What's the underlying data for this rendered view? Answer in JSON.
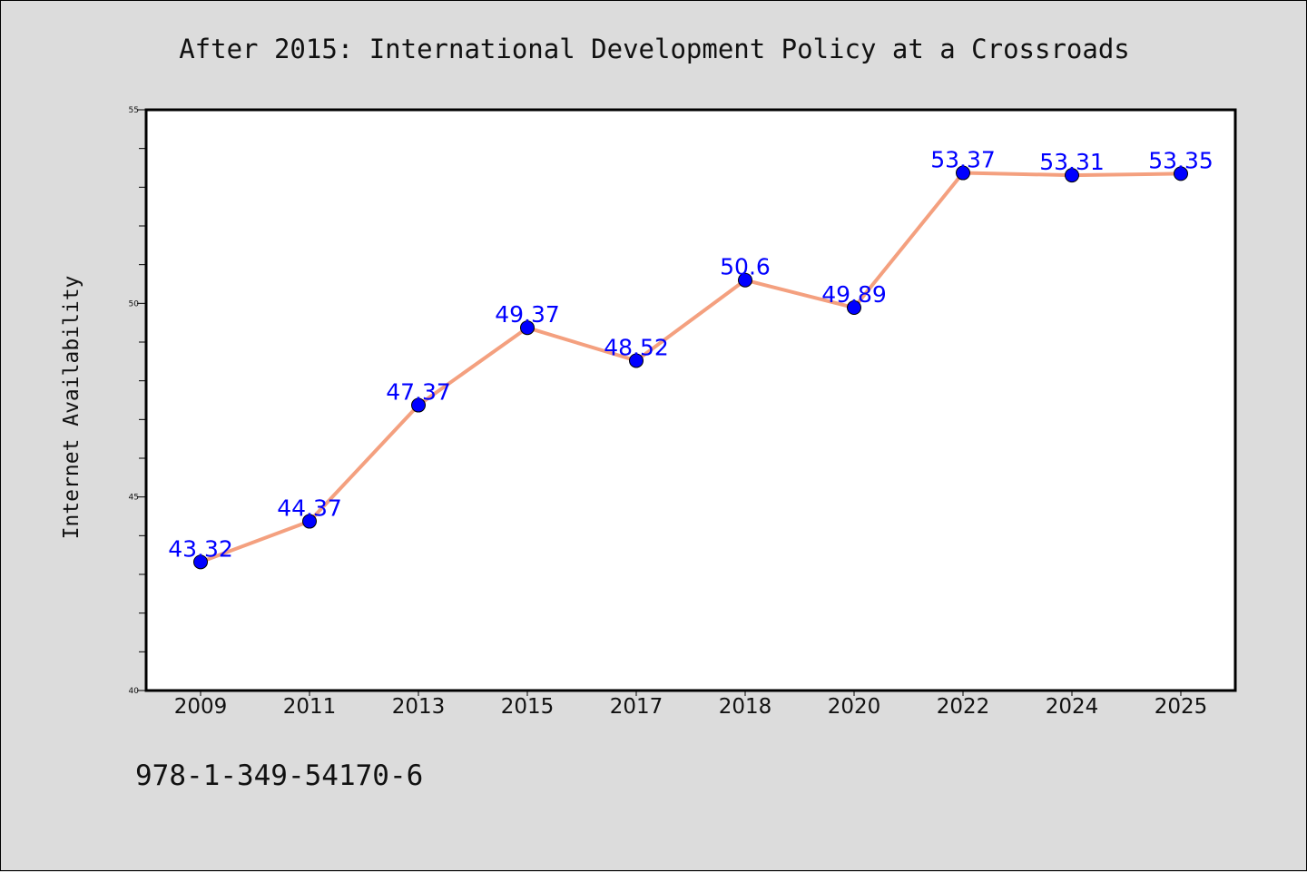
{
  "chart_data": {
    "type": "line",
    "title": "After 2015: International Development Policy at a Crossroads",
    "xlabel": "",
    "ylabel": "Internet Availability",
    "categories": [
      "2009",
      "2011",
      "2013",
      "2015",
      "2017",
      "2018",
      "2020",
      "2022",
      "2024",
      "2025"
    ],
    "series": [
      {
        "values": [
          43.32,
          44.37,
          47.37,
          49.37,
          48.52,
          50.6,
          49.89,
          53.37,
          53.31,
          53.35
        ],
        "labels": [
          "43.32",
          "44.37",
          "47.37",
          "49.37",
          "48.52",
          "50.6",
          "49.89",
          "53.37",
          "53.31",
          "53.35"
        ],
        "line_color": "#f4a07f",
        "marker_color": "#0000ff"
      }
    ],
    "ylim": [
      40,
      55
    ],
    "yticks": [
      40,
      45,
      50,
      55
    ],
    "ytick_labels": [
      "40",
      "45",
      "50",
      "55"
    ],
    "grid": false,
    "legend": "none"
  },
  "footer": {
    "isbn": "978-1-349-54170-6"
  }
}
